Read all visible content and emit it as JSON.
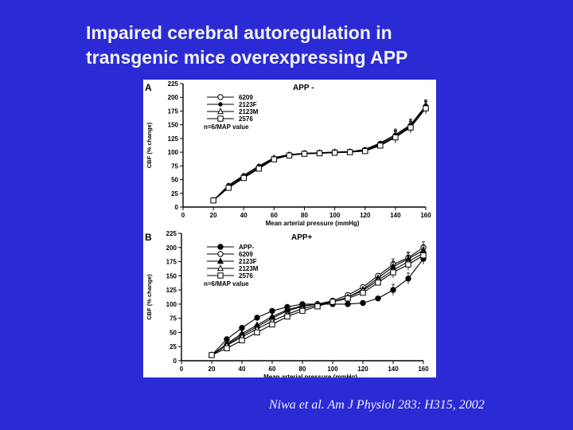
{
  "slide": {
    "title_line1": "Impaired cerebral autoregulation in",
    "title_line2": "transgenic mice overexpressing APP",
    "citation": "Niwa et al. Am J Physiol 283: H315, 2002"
  },
  "colors": {
    "background": "#2b2bd6",
    "title_text": "#f2f2f2",
    "figure_bg": "#ffffff",
    "ink": "#000000"
  },
  "chart_data": [
    {
      "type": "line",
      "panel": "A",
      "title": "APP -",
      "xlabel": "Mean arterial pressure (mmHg)",
      "ylabel": "CBF (% change)",
      "xlim": [
        0,
        160
      ],
      "ylim": [
        0,
        225
      ],
      "xticks": [
        0,
        20,
        40,
        60,
        80,
        100,
        120,
        140,
        160
      ],
      "yticks": [
        0,
        25,
        50,
        75,
        100,
        125,
        150,
        175,
        200,
        225
      ],
      "legend_note": "n=6/MAP value",
      "grid": false,
      "legend_position": "top-left",
      "series": [
        {
          "name": "6209",
          "marker": "circle-open",
          "x": [
            20,
            30,
            40,
            50,
            60,
            70,
            80,
            90,
            100,
            110,
            120,
            130,
            140,
            150,
            160
          ],
          "y": [
            12,
            36,
            55,
            72,
            88,
            95,
            98,
            99,
            100,
            101,
            104,
            115,
            130,
            148,
            183
          ]
        },
        {
          "name": "2123F",
          "marker": "circle-small",
          "x": [
            20,
            30,
            40,
            50,
            60,
            70,
            80,
            90,
            100,
            110,
            120,
            130,
            140,
            150,
            160
          ],
          "y": [
            12,
            40,
            58,
            75,
            90,
            96,
            98,
            99,
            100,
            101,
            105,
            117,
            132,
            150,
            185
          ]
        },
        {
          "name": "2123M",
          "marker": "triangle-open",
          "x": [
            20,
            30,
            40,
            50,
            60,
            70,
            80,
            90,
            100,
            110,
            120,
            130,
            140,
            150,
            160
          ],
          "y": [
            12,
            38,
            56,
            73,
            89,
            95,
            97,
            98,
            100,
            100,
            103,
            113,
            128,
            146,
            182
          ]
        },
        {
          "name": "2576",
          "marker": "square-open",
          "x": [
            20,
            30,
            40,
            50,
            60,
            70,
            80,
            90,
            100,
            110,
            120,
            130,
            140,
            150,
            160
          ],
          "y": [
            12,
            35,
            53,
            70,
            87,
            94,
            97,
            98,
            99,
            100,
            102,
            112,
            127,
            145,
            180
          ]
        }
      ]
    },
    {
      "type": "line",
      "panel": "B",
      "title": "APP+",
      "xlabel": "Mean arterial pressure (mmHg)",
      "ylabel": "CBF (% change)",
      "xlim": [
        0,
        160
      ],
      "ylim": [
        0,
        225
      ],
      "xticks": [
        0,
        20,
        40,
        60,
        80,
        100,
        120,
        140,
        160
      ],
      "yticks": [
        0,
        25,
        50,
        75,
        100,
        125,
        150,
        175,
        200,
        225
      ],
      "legend_note": "n=6/MAP value",
      "grid": false,
      "legend_position": "top-left",
      "series": [
        {
          "name": "APP-",
          "marker": "circle-filled",
          "x": [
            20,
            30,
            40,
            50,
            60,
            70,
            80,
            90,
            100,
            110,
            120,
            130,
            140,
            150,
            160
          ],
          "y": [
            10,
            38,
            58,
            76,
            88,
            95,
            100,
            100,
            100,
            100,
            102,
            110,
            125,
            145,
            180
          ]
        },
        {
          "name": "6209",
          "marker": "circle-open",
          "x": [
            20,
            30,
            40,
            50,
            60,
            70,
            80,
            90,
            100,
            110,
            120,
            130,
            140,
            150,
            160
          ],
          "y": [
            10,
            28,
            45,
            60,
            75,
            88,
            96,
            100,
            106,
            116,
            130,
            150,
            170,
            182,
            200
          ]
        },
        {
          "name": "2123F",
          "marker": "triangle-filled",
          "x": [
            20,
            30,
            40,
            50,
            60,
            70,
            80,
            90,
            100,
            110,
            120,
            130,
            140,
            150,
            160
          ],
          "y": [
            10,
            30,
            48,
            63,
            78,
            90,
            97,
            100,
            104,
            112,
            126,
            146,
            166,
            180,
            195
          ]
        },
        {
          "name": "2123M",
          "marker": "triangle-open",
          "x": [
            20,
            30,
            40,
            50,
            60,
            70,
            80,
            90,
            100,
            110,
            120,
            130,
            140,
            150,
            160
          ],
          "y": [
            10,
            27,
            42,
            56,
            70,
            82,
            92,
            98,
            104,
            112,
            124,
            142,
            160,
            175,
            190
          ]
        },
        {
          "name": "2576",
          "marker": "square-open",
          "x": [
            20,
            30,
            40,
            50,
            60,
            70,
            80,
            90,
            100,
            110,
            120,
            130,
            140,
            150,
            160
          ],
          "y": [
            10,
            22,
            36,
            50,
            64,
            78,
            88,
            96,
            104,
            110,
            120,
            138,
            156,
            170,
            186
          ]
        }
      ]
    }
  ]
}
